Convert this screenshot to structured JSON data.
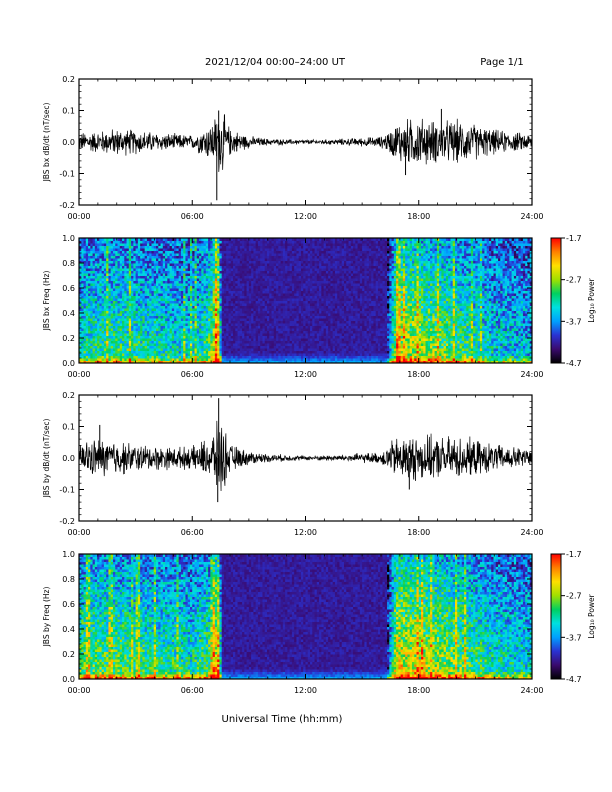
{
  "header": {
    "date_range": "2021/12/04  00:00–24:00 UT",
    "page": "Page 1/1"
  },
  "x_axis_title": "Universal Time (hh:mm)",
  "colorbar": {
    "label": "Log₁₀ Power",
    "ticks": [
      "-1.7",
      "-2.7",
      "-3.7",
      "-4.7"
    ],
    "min": -4.7,
    "max": -1.7,
    "stops": [
      "#000000",
      "#3a0a6e",
      "#2a32d2",
      "#00a0ff",
      "#00e0e0",
      "#00d060",
      "#a0e000",
      "#ffe000",
      "#ff8000",
      "#ff0000"
    ]
  },
  "chart_data": [
    {
      "type": "line",
      "ylabel": "JBS bx dB/dt (nT/sec)",
      "ylim": [
        -0.2,
        0.2
      ],
      "yticks": [
        "0.2",
        "0.1",
        "0.0",
        "-0.1",
        "-0.2"
      ],
      "xlim": [
        0,
        24
      ],
      "xticks": [
        "00:00",
        "06:00",
        "12:00",
        "18:00",
        "24:00"
      ],
      "series_color": "#000000",
      "envelope": {
        "hours": [
          0,
          1,
          2,
          3,
          4,
          5,
          6,
          7,
          7.5,
          8,
          9,
          10,
          11,
          12,
          13,
          14,
          15,
          16,
          16.5,
          17,
          18,
          19,
          20,
          21,
          22,
          23,
          24
        ],
        "amplitude": [
          0.035,
          0.04,
          0.05,
          0.045,
          0.035,
          0.03,
          0.025,
          0.07,
          0.13,
          0.05,
          0.022,
          0.012,
          0.01,
          0.008,
          0.009,
          0.012,
          0.016,
          0.02,
          0.045,
          0.08,
          0.09,
          0.075,
          0.08,
          0.065,
          0.045,
          0.035,
          0.03
        ]
      },
      "spikes": [
        {
          "hour": 7.3,
          "value": -0.185
        },
        {
          "hour": 7.4,
          "value": 0.1
        },
        {
          "hour": 19.2,
          "value": 0.105
        },
        {
          "hour": 17.3,
          "value": -0.105
        }
      ]
    },
    {
      "type": "heatmap",
      "ylabel": "JBS bx Freq (Hz)",
      "ylim": [
        0,
        1
      ],
      "yticks": [
        "1.0",
        "0.8",
        "0.6",
        "0.4",
        "0.2",
        "0.0"
      ],
      "xlim": [
        0,
        24
      ],
      "xticks": [
        "00:00",
        "06:00",
        "12:00",
        "18:00",
        "24:00"
      ],
      "activity": {
        "hours": [
          0,
          2,
          4,
          6,
          7,
          7.4,
          7.6,
          9,
          12,
          15,
          16.3,
          16.8,
          18,
          20,
          22,
          24
        ],
        "level": [
          0.5,
          0.55,
          0.5,
          0.45,
          0.6,
          0.9,
          0.05,
          0.05,
          0.03,
          0.06,
          0.08,
          0.75,
          0.7,
          0.6,
          0.45,
          0.4
        ]
      }
    },
    {
      "type": "line",
      "ylabel": "JBS by dB/dt (nT/sec)",
      "ylim": [
        -0.2,
        0.2
      ],
      "yticks": [
        "0.2",
        "0.1",
        "0.0",
        "-0.1",
        "-0.2"
      ],
      "xlim": [
        0,
        24
      ],
      "xticks": [
        "00:00",
        "06:00",
        "12:00",
        "18:00",
        "24:00"
      ],
      "series_color": "#000000",
      "envelope": {
        "hours": [
          0,
          1,
          2,
          3,
          4,
          5,
          6,
          7,
          7.5,
          8,
          9,
          10,
          11,
          12,
          13,
          14,
          15,
          16,
          16.5,
          17,
          18,
          19,
          20,
          21,
          22,
          23,
          24
        ],
        "amplitude": [
          0.06,
          0.07,
          0.065,
          0.05,
          0.045,
          0.04,
          0.04,
          0.08,
          0.15,
          0.05,
          0.025,
          0.015,
          0.012,
          0.008,
          0.01,
          0.012,
          0.018,
          0.02,
          0.06,
          0.08,
          0.085,
          0.075,
          0.08,
          0.065,
          0.05,
          0.04,
          0.035
        ]
      },
      "spikes": [
        {
          "hour": 7.4,
          "value": 0.19
        },
        {
          "hour": 7.35,
          "value": -0.14
        },
        {
          "hour": 17.5,
          "value": -0.1
        },
        {
          "hour": 1.1,
          "value": 0.105
        }
      ]
    },
    {
      "type": "heatmap",
      "ylabel": "JBS by Freq (Hz)",
      "ylim": [
        0,
        1
      ],
      "yticks": [
        "1.0",
        "0.8",
        "0.6",
        "0.4",
        "0.2",
        "0.0"
      ],
      "xlim": [
        0,
        24
      ],
      "xticks": [
        "00:00",
        "06:00",
        "12:00",
        "18:00",
        "24:00"
      ],
      "activity": {
        "hours": [
          0,
          2,
          4,
          6,
          7,
          7.4,
          7.6,
          9,
          12,
          15,
          16.3,
          16.8,
          18,
          20,
          22,
          24
        ],
        "level": [
          0.6,
          0.6,
          0.55,
          0.5,
          0.6,
          0.95,
          0.06,
          0.06,
          0.04,
          0.07,
          0.1,
          0.8,
          0.75,
          0.65,
          0.5,
          0.45
        ]
      }
    }
  ]
}
